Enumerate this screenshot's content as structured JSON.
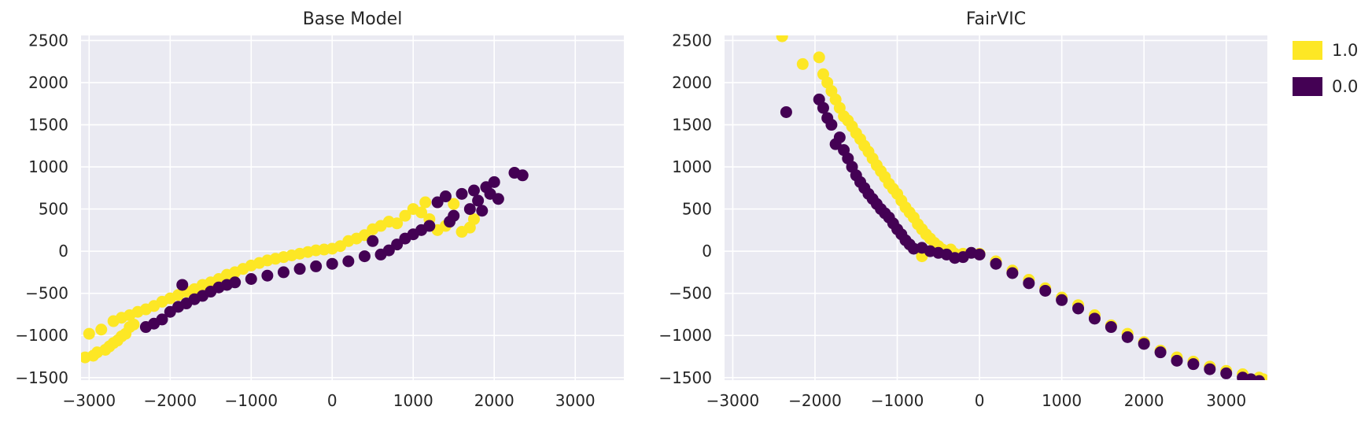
{
  "chart_data": [
    {
      "type": "scatter",
      "title": "Base Model",
      "xlabel": "",
      "ylabel": "",
      "xlim": [
        -3100,
        3600
      ],
      "ylim": [
        -1530,
        2560
      ],
      "xticks": [
        -3000,
        -2000,
        -1000,
        0,
        1000,
        2000,
        3000
      ],
      "xtick_labels": [
        "−3000",
        "−2000",
        "−1000",
        "0",
        "1000",
        "2000",
        "3000"
      ],
      "yticks": [
        -1500,
        -1000,
        -500,
        0,
        500,
        1000,
        1500,
        2000,
        2500
      ],
      "ytick_labels": [
        "−1500",
        "−1000",
        "−500",
        "0",
        "500",
        "1000",
        "1500",
        "2000",
        "2500"
      ],
      "grid": true,
      "series": [
        {
          "name": "1.0",
          "color": "#fde725",
          "points": [
            [
              -3050,
              -1260
            ],
            [
              -3000,
              -980
            ],
            [
              -2950,
              -1240
            ],
            [
              -2900,
              -1200
            ],
            [
              -2850,
              -930
            ],
            [
              -2800,
              -1170
            ],
            [
              -2750,
              -1130
            ],
            [
              -2700,
              -1090
            ],
            [
              -2700,
              -830
            ],
            [
              -2650,
              -1060
            ],
            [
              -2600,
              -790
            ],
            [
              -2600,
              -1010
            ],
            [
              -2550,
              -980
            ],
            [
              -2500,
              -760
            ],
            [
              -2500,
              -900
            ],
            [
              -2450,
              -870
            ],
            [
              -2400,
              -720
            ],
            [
              -2300,
              -690
            ],
            [
              -2200,
              -650
            ],
            [
              -2100,
              -600
            ],
            [
              -2000,
              -560
            ],
            [
              -1900,
              -520
            ],
            [
              -1800,
              -480
            ],
            [
              -1700,
              -450
            ],
            [
              -1600,
              -400
            ],
            [
              -1500,
              -370
            ],
            [
              -1400,
              -330
            ],
            [
              -1300,
              -280
            ],
            [
              -1200,
              -250
            ],
            [
              -1100,
              -210
            ],
            [
              -1000,
              -170
            ],
            [
              -900,
              -140
            ],
            [
              -800,
              -110
            ],
            [
              -700,
              -90
            ],
            [
              -600,
              -70
            ],
            [
              -500,
              -50
            ],
            [
              -400,
              -30
            ],
            [
              -300,
              -10
            ],
            [
              -200,
              10
            ],
            [
              -100,
              20
            ],
            [
              0,
              30
            ],
            [
              100,
              60
            ],
            [
              200,
              120
            ],
            [
              300,
              150
            ],
            [
              400,
              190
            ],
            [
              500,
              260
            ],
            [
              600,
              300
            ],
            [
              700,
              350
            ],
            [
              800,
              330
            ],
            [
              900,
              420
            ],
            [
              1000,
              500
            ],
            [
              1100,
              460
            ],
            [
              1150,
              580
            ],
            [
              1200,
              380
            ],
            [
              1300,
              250
            ],
            [
              1400,
              300
            ],
            [
              1500,
              560
            ],
            [
              1600,
              230
            ],
            [
              1700,
              280
            ],
            [
              1750,
              380
            ]
          ]
        },
        {
          "name": "0.0",
          "color": "#440154",
          "points": [
            [
              -2300,
              -900
            ],
            [
              -2200,
              -860
            ],
            [
              -2100,
              -810
            ],
            [
              -2000,
              -720
            ],
            [
              -1900,
              -660
            ],
            [
              -1850,
              -400
            ],
            [
              -1800,
              -620
            ],
            [
              -1700,
              -570
            ],
            [
              -1600,
              -530
            ],
            [
              -1500,
              -480
            ],
            [
              -1400,
              -430
            ],
            [
              -1300,
              -400
            ],
            [
              -1200,
              -370
            ],
            [
              -1000,
              -330
            ],
            [
              -800,
              -290
            ],
            [
              -600,
              -250
            ],
            [
              -400,
              -210
            ],
            [
              -200,
              -180
            ],
            [
              0,
              -150
            ],
            [
              200,
              -120
            ],
            [
              400,
              -60
            ],
            [
              500,
              120
            ],
            [
              600,
              -40
            ],
            [
              700,
              10
            ],
            [
              800,
              80
            ],
            [
              900,
              150
            ],
            [
              1000,
              200
            ],
            [
              1100,
              250
            ],
            [
              1200,
              300
            ],
            [
              1300,
              580
            ],
            [
              1400,
              650
            ],
            [
              1450,
              350
            ],
            [
              1500,
              420
            ],
            [
              1600,
              680
            ],
            [
              1700,
              500
            ],
            [
              1750,
              720
            ],
            [
              1800,
              600
            ],
            [
              1850,
              480
            ],
            [
              1900,
              760
            ],
            [
              1950,
              680
            ],
            [
              2000,
              820
            ],
            [
              2050,
              620
            ],
            [
              2250,
              930
            ],
            [
              2350,
              900
            ]
          ]
        }
      ]
    },
    {
      "type": "scatter",
      "title": "FairVIC",
      "xlabel": "",
      "ylabel": "",
      "xlim": [
        -3100,
        3500
      ],
      "ylim": [
        -1530,
        2560
      ],
      "xticks": [
        -3000,
        -2000,
        -1000,
        0,
        1000,
        2000,
        3000
      ],
      "xtick_labels": [
        "−3000",
        "−2000",
        "−1000",
        "0",
        "1000",
        "2000",
        "3000"
      ],
      "yticks": [
        -1500,
        -1000,
        -500,
        0,
        500,
        1000,
        1500,
        2000,
        2500
      ],
      "ytick_labels": [
        "−1500",
        "−1000",
        "−500",
        "0",
        "500",
        "1000",
        "1500",
        "2000",
        "2500"
      ],
      "grid": true,
      "series": [
        {
          "name": "1.0",
          "color": "#fde725",
          "points": [
            [
              -2400,
              2550
            ],
            [
              -2150,
              2220
            ],
            [
              -1950,
              2300
            ],
            [
              -1900,
              2100
            ],
            [
              -1850,
              2000
            ],
            [
              -1800,
              1900
            ],
            [
              -1750,
              1800
            ],
            [
              -1700,
              1700
            ],
            [
              -1650,
              1600
            ],
            [
              -1600,
              1550
            ],
            [
              -1550,
              1480
            ],
            [
              -1500,
              1400
            ],
            [
              -1450,
              1330
            ],
            [
              -1400,
              1250
            ],
            [
              -1350,
              1180
            ],
            [
              -1300,
              1100
            ],
            [
              -1250,
              1020
            ],
            [
              -1200,
              950
            ],
            [
              -1150,
              880
            ],
            [
              -1100,
              800
            ],
            [
              -1050,
              740
            ],
            [
              -1000,
              680
            ],
            [
              -950,
              600
            ],
            [
              -900,
              520
            ],
            [
              -850,
              460
            ],
            [
              -800,
              400
            ],
            [
              -750,
              320
            ],
            [
              -700,
              260
            ],
            [
              -650,
              200
            ],
            [
              -600,
              150
            ],
            [
              -550,
              100
            ],
            [
              -500,
              60
            ],
            [
              -450,
              20
            ],
            [
              -400,
              -10
            ],
            [
              -350,
              20
            ],
            [
              -700,
              -60
            ],
            [
              -300,
              -30
            ],
            [
              -200,
              -30
            ],
            [
              0,
              -30
            ],
            [
              200,
              -120
            ],
            [
              400,
              -230
            ],
            [
              600,
              -340
            ],
            [
              800,
              -440
            ],
            [
              1000,
              -550
            ],
            [
              1200,
              -640
            ],
            [
              1400,
              -760
            ],
            [
              1600,
              -880
            ],
            [
              1800,
              -980
            ],
            [
              2000,
              -1080
            ],
            [
              2200,
              -1180
            ],
            [
              2400,
              -1260
            ],
            [
              2600,
              -1310
            ],
            [
              2800,
              -1370
            ],
            [
              3000,
              -1420
            ],
            [
              3200,
              -1460
            ],
            [
              3400,
              -1500
            ],
            [
              3450,
              -1520
            ]
          ]
        },
        {
          "name": "0.0",
          "color": "#440154",
          "points": [
            [
              -2350,
              1650
            ],
            [
              -1950,
              1800
            ],
            [
              -1900,
              1700
            ],
            [
              -1850,
              1580
            ],
            [
              -1800,
              1500
            ],
            [
              -1750,
              1270
            ],
            [
              -1700,
              1350
            ],
            [
              -1650,
              1200
            ],
            [
              -1600,
              1100
            ],
            [
              -1550,
              1000
            ],
            [
              -1500,
              900
            ],
            [
              -1450,
              820
            ],
            [
              -1400,
              750
            ],
            [
              -1350,
              680
            ],
            [
              -1300,
              620
            ],
            [
              -1250,
              560
            ],
            [
              -1200,
              500
            ],
            [
              -1150,
              450
            ],
            [
              -1100,
              400
            ],
            [
              -1050,
              330
            ],
            [
              -1000,
              260
            ],
            [
              -950,
              200
            ],
            [
              -900,
              130
            ],
            [
              -850,
              80
            ],
            [
              -800,
              30
            ],
            [
              -700,
              40
            ],
            [
              -600,
              0
            ],
            [
              -500,
              -20
            ],
            [
              -400,
              -40
            ],
            [
              -300,
              -80
            ],
            [
              -200,
              -70
            ],
            [
              -100,
              -20
            ],
            [
              0,
              -40
            ],
            [
              200,
              -150
            ],
            [
              400,
              -260
            ],
            [
              600,
              -380
            ],
            [
              800,
              -470
            ],
            [
              1000,
              -580
            ],
            [
              1200,
              -680
            ],
            [
              1400,
              -800
            ],
            [
              1600,
              -900
            ],
            [
              1800,
              -1020
            ],
            [
              2000,
              -1100
            ],
            [
              2200,
              -1200
            ],
            [
              2400,
              -1300
            ],
            [
              2600,
              -1340
            ],
            [
              2800,
              -1400
            ],
            [
              3000,
              -1450
            ],
            [
              3200,
              -1500
            ],
            [
              3300,
              -1520
            ],
            [
              3400,
              -1540
            ]
          ]
        }
      ]
    }
  ],
  "legend": {
    "placement": "right",
    "items": [
      {
        "label": "1.0",
        "color": "#fde725"
      },
      {
        "label": "0.0",
        "color": "#440154"
      }
    ]
  },
  "style": {
    "axes_background": "#eaeaf2",
    "grid_color": "#ffffff"
  }
}
